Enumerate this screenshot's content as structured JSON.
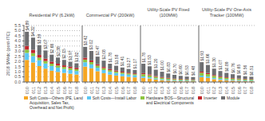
{
  "chart_data": [
    {
      "type": "bar",
      "stacked": true,
      "title": "Residential PV (6.2kW)",
      "ylabel": "2018 $/Wdc (post-ITC)",
      "grid": true,
      "legend": "bottom",
      "categories": [
        "2010",
        "2011",
        "2012",
        "2013",
        "2014",
        "2015",
        "2016",
        "2017",
        "2018"
      ],
      "series": [
        {
          "name": "Soft Costs—Others (PE, Land\nAcquisition, Sales Tax,\nOverhead and Net Profit)",
          "color": "#F5A623",
          "values": [
            2.15,
            1.9,
            1.55,
            1.3,
            1.1,
            0.98,
            0.88,
            0.8,
            0.73
          ]
        },
        {
          "name": "Soft Costs—Install Labor",
          "color": "#5BC8F5",
          "values": [
            0.68,
            0.62,
            0.56,
            0.5,
            0.46,
            0.42,
            0.39,
            0.36,
            0.34
          ]
        },
        {
          "name": "Hardware BOS—Structural\nand Electrical Components",
          "color": "#8DC63F",
          "values": [
            0.32,
            0.29,
            0.26,
            0.24,
            0.22,
            0.2,
            0.19,
            0.18,
            0.17
          ]
        },
        {
          "name": "Inverter",
          "color": "#C1272D",
          "values": [
            0.36,
            0.32,
            0.27,
            0.23,
            0.2,
            0.18,
            0.16,
            0.15,
            0.14
          ]
        },
        {
          "name": "Module",
          "color": "#6D6E71",
          "values": [
            1.38,
            1.19,
            0.95,
            0.8,
            0.68,
            0.6,
            0.53,
            0.48,
            0.44
          ]
        }
      ],
      "totals": [
        4.89,
        4.32,
        3.59,
        3.07,
        2.66,
        2.38,
        2.15,
        1.97,
        1.82
      ],
      "total_labels": [
        "$4.89",
        "$4.32",
        "$3.59",
        "$3.07",
        "$2.66",
        "$2.38",
        "$2.15",
        "$1.97",
        "$1.82"
      ],
      "ylim": [
        0,
        5.5
      ],
      "yticks": [
        {
          "value": 0,
          "label": "0.0"
        },
        0.5,
        {
          "value": 1.0,
          "label": "1.0"
        },
        1.5,
        {
          "value": 2.0,
          "label": "2.0"
        },
        2.5,
        {
          "value": 3.0,
          "label": "3.0"
        },
        3.5,
        {
          "value": 4.0,
          "label": "4.0"
        },
        4.5,
        {
          "value": 5.0,
          "label": "5.0"
        },
        5.5
      ]
    },
    {
      "type": "bar",
      "stacked": true,
      "title": "Commercial PV (200kW)",
      "grid": true,
      "tick_labels": "x",
      "categories": [
        "2010",
        "2011",
        "2012",
        "2013",
        "2014",
        "2015",
        "2016",
        "2017",
        "2018"
      ],
      "series": [
        {
          "name": "Soft Costs—Others (PE, Land\nAcquisition, Sales Tax,\nOverhead and Net Profit)",
          "color": "#F5A623",
          "values": [
            1.5,
            1.33,
            1.05,
            0.86,
            0.72,
            0.63,
            0.56,
            0.5,
            0.45
          ]
        },
        {
          "name": "Soft Costs—Install Labor",
          "color": "#5BC8F5",
          "values": [
            0.42,
            0.38,
            0.34,
            0.3,
            0.27,
            0.25,
            0.23,
            0.21,
            0.2
          ]
        },
        {
          "name": "Hardware BOS—Structural\nand Electrical Components",
          "color": "#8DC63F",
          "values": [
            0.26,
            0.23,
            0.2,
            0.18,
            0.16,
            0.14,
            0.13,
            0.12,
            0.11
          ]
        },
        {
          "name": "Inverter",
          "color": "#C1272D",
          "values": [
            0.18,
            0.16,
            0.14,
            0.12,
            0.11,
            0.1,
            0.09,
            0.08,
            0.08
          ]
        },
        {
          "name": "Module",
          "color": "#6D6E71",
          "values": [
            1.06,
            0.92,
            0.74,
            0.62,
            0.52,
            0.46,
            0.4,
            0.36,
            0.33
          ]
        }
      ],
      "totals": [
        3.42,
        3.02,
        2.47,
        2.08,
        1.78,
        1.58,
        1.41,
        1.27,
        1.17
      ],
      "total_labels": [
        "$3.42",
        "$3.02",
        "$2.47",
        "$2.08",
        "$1.78",
        "$1.58",
        "$1.41",
        "$1.27",
        "$1.17"
      ],
      "ylim": [
        0,
        5.5
      ],
      "yticks": [
        {
          "value": 0,
          "label": "0.0"
        },
        0.5,
        {
          "value": 1.0,
          "label": "1.0"
        },
        1.5,
        {
          "value": 2.0,
          "label": "2.0"
        },
        2.5,
        {
          "value": 3.0,
          "label": "3.0"
        },
        3.5,
        {
          "value": 4.0,
          "label": "4.0"
        },
        4.5,
        {
          "value": 5.0,
          "label": "5.0"
        },
        5.5
      ]
    },
    {
      "type": "bar",
      "stacked": true,
      "title": "Utility-Scale PV Fixed (100MW)",
      "grid": true,
      "tick_labels": "x",
      "categories": [
        "2010",
        "2011",
        "2012",
        "2013",
        "2014",
        "2015",
        "2016",
        "2017",
        "2018"
      ],
      "series": [
        {
          "name": "Soft Costs—Others (PE, Land\nAcquisition, Sales Tax,\nOverhead and Net Profit)",
          "color": "#F5A623",
          "values": [
            0.4,
            0.34,
            0.24,
            0.18,
            0.14,
            0.11,
            0.09,
            0.08,
            0.07
          ]
        },
        {
          "name": "Soft Costs—Install Labor",
          "color": "#5BC8F5",
          "values": [
            0.14,
            0.12,
            0.1,
            0.09,
            0.08,
            0.07,
            0.06,
            0.06,
            0.05
          ]
        },
        {
          "name": "Hardware BOS—Structural\nand Electrical Components",
          "color": "#8DC63F",
          "values": [
            0.22,
            0.19,
            0.16,
            0.14,
            0.12,
            0.1,
            0.09,
            0.08,
            0.08
          ]
        },
        {
          "name": "Inverter",
          "color": "#C1272D",
          "values": [
            0.1,
            0.09,
            0.08,
            0.07,
            0.06,
            0.05,
            0.05,
            0.04,
            0.04
          ]
        },
        {
          "name": "Module",
          "color": "#6D6E71",
          "values": [
            0.92,
            0.79,
            0.62,
            0.52,
            0.43,
            0.37,
            0.31,
            0.27,
            0.24
          ]
        }
      ],
      "totals": [
        1.78,
        1.53,
        1.2,
        1.0,
        0.83,
        0.7,
        0.6,
        0.53,
        0.48
      ],
      "total_labels": [
        "$1.78",
        "$1.53",
        "$1.20",
        "$1.00",
        "$0.83",
        "$0.70",
        "$0.60",
        "$0.53",
        "$0.48"
      ],
      "ylim": [
        0,
        5.5
      ],
      "yticks": [
        {
          "value": 0,
          "label": "0.0"
        },
        0.5,
        {
          "value": 1.0,
          "label": "1.0"
        },
        1.5,
        {
          "value": 2.0,
          "label": "2.0"
        },
        2.5,
        {
          "value": 3.0,
          "label": "3.0"
        },
        3.5,
        {
          "value": 4.0,
          "label": "4.0"
        },
        4.5,
        {
          "value": 5.0,
          "label": "5.0"
        },
        5.5
      ]
    },
    {
      "type": "bar",
      "stacked": true,
      "title": "Utility-Scale PV One-Axis Tracker (100MW)",
      "grid": true,
      "tick_labels": "x",
      "categories": [
        "2010",
        "2011",
        "2012",
        "2013",
        "2014",
        "2015",
        "2016",
        "2017",
        "2018"
      ],
      "series": [
        {
          "name": "Soft Costs—Others (PE, Land\nAcquisition, Sales Tax,\nOverhead and Net Profit)",
          "color": "#F5A623",
          "values": [
            0.46,
            0.39,
            0.28,
            0.21,
            0.16,
            0.13,
            0.11,
            0.09,
            0.08
          ]
        },
        {
          "name": "Soft Costs—Install Labor",
          "color": "#5BC8F5",
          "values": [
            0.16,
            0.14,
            0.12,
            0.1,
            0.09,
            0.08,
            0.07,
            0.06,
            0.06
          ]
        },
        {
          "name": "Hardware BOS—Structural\nand Electrical Components",
          "color": "#8DC63F",
          "values": [
            0.28,
            0.24,
            0.2,
            0.17,
            0.15,
            0.13,
            0.11,
            0.1,
            0.09
          ]
        },
        {
          "name": "Inverter",
          "color": "#C1272D",
          "values": [
            0.11,
            0.1,
            0.08,
            0.07,
            0.06,
            0.05,
            0.05,
            0.04,
            0.04
          ]
        },
        {
          "name": "Module",
          "color": "#6D6E71",
          "values": [
            0.92,
            0.79,
            0.62,
            0.52,
            0.43,
            0.37,
            0.31,
            0.27,
            0.24
          ]
        }
      ],
      "totals": [
        1.93,
        1.66,
        1.3,
        1.07,
        0.89,
        0.76,
        0.65,
        0.56,
        0.51
      ],
      "total_labels": [
        "$1.93",
        "$1.66",
        "$1.30",
        "$1.07",
        "$0.89",
        "$0.76",
        "$0.65",
        "$0.56",
        "$0.51"
      ],
      "ylim": [
        0,
        5.5
      ],
      "yticks": [
        {
          "value": 0,
          "label": "0.0"
        },
        0.5,
        {
          "value": 1.0,
          "label": "1.0"
        },
        1.5,
        {
          "value": 2.0,
          "label": "2.0"
        },
        2.5,
        {
          "value": 3.0,
          "label": "3.0"
        },
        3.5,
        {
          "value": 4.0,
          "label": "4.0"
        },
        4.5,
        {
          "value": 5.0,
          "label": "5.0"
        },
        5.5
      ]
    }
  ]
}
